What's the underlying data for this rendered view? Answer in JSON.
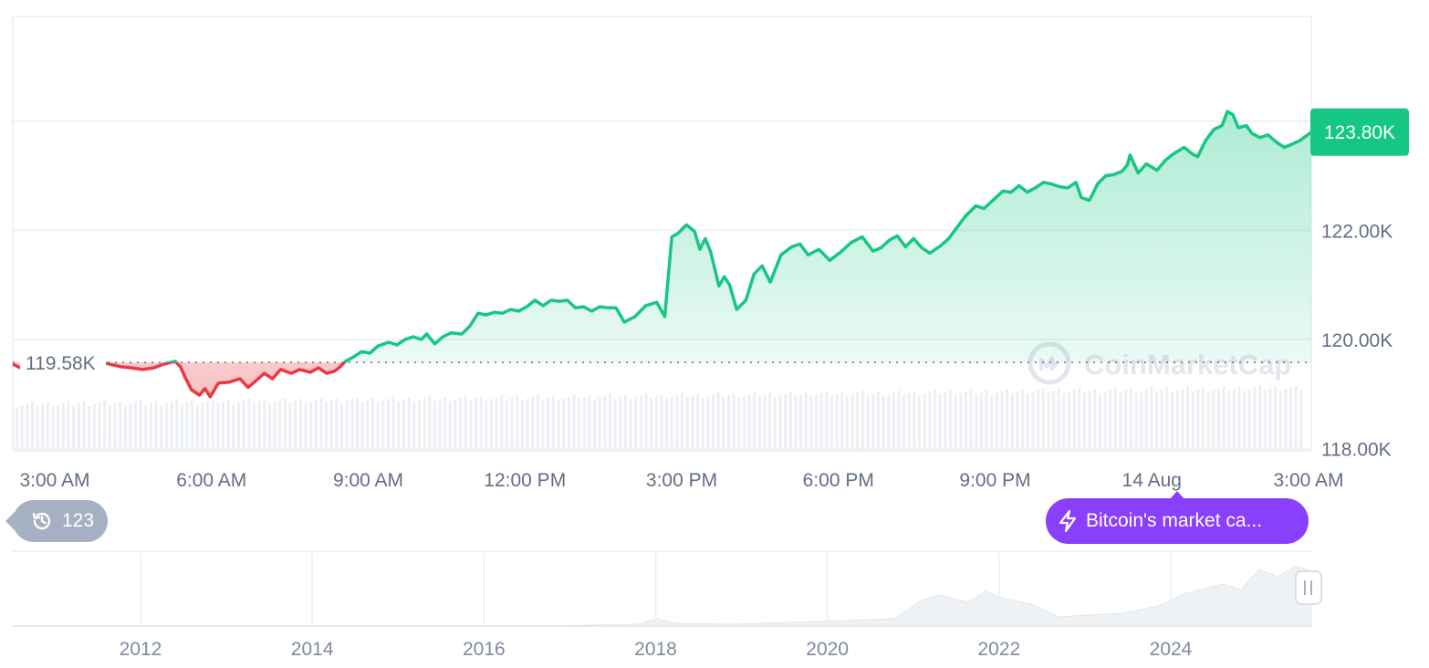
{
  "chart_data": {
    "type": "line",
    "title": "",
    "x_ticks": [
      "3:00 AM",
      "6:00 AM",
      "9:00 AM",
      "12:00 PM",
      "3:00 PM",
      "6:00 PM",
      "9:00 PM",
      "14 Aug",
      "3:00 AM"
    ],
    "y_ticks": [
      "118.00K",
      "120.00K",
      "122.00K"
    ],
    "ylim": [
      117.96,
      125.92
    ],
    "baseline": 119.58,
    "baseline_label": "119.58K",
    "current_price": 123.8,
    "current_price_label": "123.80K",
    "x_hours_start": 2.3,
    "x_hours_end": 26.3,
    "series": [
      {
        "values": [
          [
            2.3,
            119.55
          ],
          [
            2.5,
            119.45
          ],
          [
            2.7,
            119.6
          ],
          [
            2.9,
            119.7
          ],
          [
            3.1,
            119.62
          ],
          [
            3.3,
            119.72
          ],
          [
            3.5,
            119.68
          ],
          [
            4.3,
            119.5
          ],
          [
            4.5,
            119.48
          ],
          [
            4.7,
            119.45
          ],
          [
            4.9,
            119.48
          ],
          [
            5.1,
            119.55
          ],
          [
            5.3,
            119.6
          ],
          [
            5.4,
            119.5
          ],
          [
            5.5,
            119.28
          ],
          [
            5.6,
            119.08
          ],
          [
            5.75,
            118.98
          ],
          [
            5.85,
            119.1
          ],
          [
            5.95,
            118.95
          ],
          [
            6.1,
            119.2
          ],
          [
            6.3,
            119.22
          ],
          [
            6.5,
            119.28
          ],
          [
            6.65,
            119.12
          ],
          [
            6.8,
            119.25
          ],
          [
            6.95,
            119.38
          ],
          [
            7.1,
            119.28
          ],
          [
            7.25,
            119.45
          ],
          [
            7.45,
            119.38
          ],
          [
            7.6,
            119.45
          ],
          [
            7.8,
            119.4
          ],
          [
            7.95,
            119.48
          ],
          [
            8.1,
            119.38
          ],
          [
            8.25,
            119.42
          ],
          [
            8.35,
            119.5
          ],
          [
            8.45,
            119.6
          ],
          [
            8.6,
            119.68
          ],
          [
            8.75,
            119.78
          ],
          [
            8.9,
            119.75
          ],
          [
            9.05,
            119.88
          ],
          [
            9.25,
            119.95
          ],
          [
            9.4,
            119.9
          ],
          [
            9.55,
            120.0
          ],
          [
            9.7,
            120.05
          ],
          [
            9.85,
            120.0
          ],
          [
            9.95,
            120.1
          ],
          [
            10.1,
            119.92
          ],
          [
            10.25,
            120.05
          ],
          [
            10.4,
            120.12
          ],
          [
            10.6,
            120.1
          ],
          [
            10.75,
            120.25
          ],
          [
            10.9,
            120.48
          ],
          [
            11.05,
            120.45
          ],
          [
            11.2,
            120.5
          ],
          [
            11.35,
            120.48
          ],
          [
            11.5,
            120.55
          ],
          [
            11.65,
            120.52
          ],
          [
            11.8,
            120.6
          ],
          [
            11.95,
            120.72
          ],
          [
            12.1,
            120.62
          ],
          [
            12.25,
            120.72
          ],
          [
            12.4,
            120.7
          ],
          [
            12.55,
            120.72
          ],
          [
            12.7,
            120.58
          ],
          [
            12.85,
            120.6
          ],
          [
            13.0,
            120.52
          ],
          [
            13.15,
            120.6
          ],
          [
            13.3,
            120.58
          ],
          [
            13.45,
            120.58
          ],
          [
            13.6,
            120.32
          ],
          [
            13.8,
            120.42
          ],
          [
            14.0,
            120.62
          ],
          [
            14.2,
            120.68
          ],
          [
            14.35,
            120.42
          ],
          [
            14.48,
            121.88
          ],
          [
            14.6,
            121.95
          ],
          [
            14.75,
            122.1
          ],
          [
            14.9,
            121.98
          ],
          [
            15.0,
            121.65
          ],
          [
            15.1,
            121.85
          ],
          [
            15.2,
            121.6
          ],
          [
            15.35,
            120.98
          ],
          [
            15.45,
            121.15
          ],
          [
            15.55,
            121.0
          ],
          [
            15.68,
            120.55
          ],
          [
            15.85,
            120.72
          ],
          [
            16.0,
            121.2
          ],
          [
            16.15,
            121.35
          ],
          [
            16.3,
            121.05
          ],
          [
            16.5,
            121.55
          ],
          [
            16.7,
            121.7
          ],
          [
            16.85,
            121.75
          ],
          [
            17.0,
            121.55
          ],
          [
            17.2,
            121.65
          ],
          [
            17.4,
            121.45
          ],
          [
            17.6,
            121.6
          ],
          [
            17.8,
            121.78
          ],
          [
            18.0,
            121.88
          ],
          [
            18.2,
            121.62
          ],
          [
            18.35,
            121.68
          ],
          [
            18.5,
            121.82
          ],
          [
            18.65,
            121.9
          ],
          [
            18.8,
            121.7
          ],
          [
            18.95,
            121.85
          ],
          [
            19.1,
            121.68
          ],
          [
            19.25,
            121.58
          ],
          [
            19.45,
            121.72
          ],
          [
            19.6,
            121.85
          ],
          [
            19.75,
            122.05
          ],
          [
            19.9,
            122.25
          ],
          [
            20.1,
            122.45
          ],
          [
            20.25,
            122.4
          ],
          [
            20.45,
            122.58
          ],
          [
            20.6,
            122.72
          ],
          [
            20.75,
            122.7
          ],
          [
            20.9,
            122.82
          ],
          [
            21.05,
            122.7
          ],
          [
            21.2,
            122.78
          ],
          [
            21.35,
            122.88
          ],
          [
            21.5,
            122.85
          ],
          [
            21.65,
            122.8
          ],
          [
            21.8,
            122.78
          ],
          [
            21.95,
            122.88
          ],
          [
            22.05,
            122.6
          ],
          [
            22.2,
            122.55
          ],
          [
            22.35,
            122.85
          ],
          [
            22.5,
            123.0
          ],
          [
            22.65,
            123.02
          ],
          [
            22.8,
            123.08
          ],
          [
            22.9,
            123.2
          ],
          [
            22.95,
            123.38
          ],
          [
            23.1,
            123.05
          ],
          [
            23.25,
            123.22
          ],
          [
            23.45,
            123.1
          ],
          [
            23.6,
            123.28
          ],
          [
            23.75,
            123.4
          ],
          [
            23.95,
            123.52
          ],
          [
            24.1,
            123.4
          ],
          [
            24.2,
            123.35
          ],
          [
            24.35,
            123.65
          ],
          [
            24.5,
            123.85
          ],
          [
            24.65,
            123.92
          ],
          [
            24.75,
            124.18
          ],
          [
            24.85,
            124.12
          ],
          [
            24.95,
            123.88
          ],
          [
            25.1,
            123.92
          ],
          [
            25.2,
            123.78
          ],
          [
            25.35,
            123.7
          ],
          [
            25.5,
            123.75
          ],
          [
            25.65,
            123.62
          ],
          [
            25.8,
            123.52
          ],
          [
            25.95,
            123.58
          ],
          [
            26.1,
            123.65
          ],
          [
            26.3,
            123.8
          ]
        ]
      }
    ],
    "range_ticks": [
      "2012",
      "2014",
      "2016",
      "2018",
      "2020",
      "2022",
      "2024"
    ],
    "colors": {
      "up_line": "#16c784",
      "down_line": "#ea3943",
      "up_fill": "#16c784",
      "down_fill": "#ea3943",
      "grid": "#eff2f5",
      "label": "#616e85",
      "badge": "#16c784",
      "news": "#8a3ffc",
      "events": "#a6b0c3",
      "watermark": "#dfe4ec"
    }
  },
  "overlay": {
    "watermark_text": "CoinMarketCap",
    "events_count": "123",
    "events_icon": "history-clock-icon",
    "news_text": "Bitcoin's market ca...",
    "news_icon": "lightning-bolt-icon"
  }
}
